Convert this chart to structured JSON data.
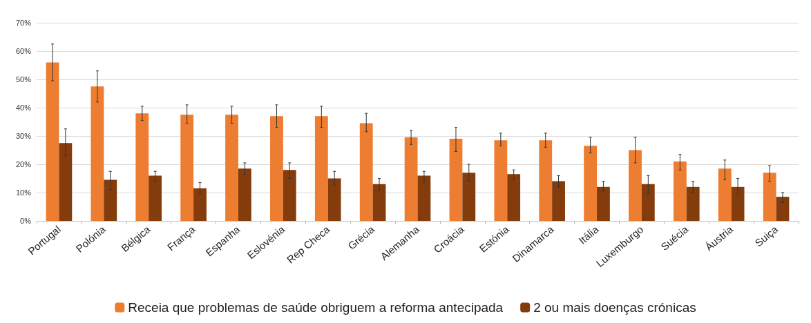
{
  "chart_data": {
    "type": "bar",
    "categories": [
      "Portugal",
      "Polónia",
      "Bélgica",
      "França",
      "Espanha",
      "Eslovénia",
      "Rep Checa",
      "Grécia",
      "Alemanha",
      "Croácia",
      "Estónia",
      "Dinamarca",
      "Itália",
      "Luxemburgo",
      "Suécia",
      "Áustria",
      "Suiça"
    ],
    "series": [
      {
        "name": "Receia que problemas de saúde obriguem a reforma antecipada",
        "color": "#ed7d31",
        "values": [
          56,
          47.5,
          38,
          37.5,
          37.5,
          37,
          37,
          34.5,
          29.5,
          29,
          28.5,
          28.5,
          26.5,
          25,
          21,
          18.5,
          17
        ],
        "errors": [
          [
            49.5,
            62.5
          ],
          [
            42,
            53
          ],
          [
            35.5,
            40.5
          ],
          [
            34.5,
            41
          ],
          [
            34.5,
            40.5
          ],
          [
            33,
            41
          ],
          [
            33,
            40.5
          ],
          [
            31.5,
            38
          ],
          [
            27,
            32
          ],
          [
            24.5,
            33
          ],
          [
            26.5,
            31
          ],
          [
            26,
            31
          ],
          [
            24,
            29.5
          ],
          [
            20.5,
            29.5
          ],
          [
            18,
            23.5
          ],
          [
            14.5,
            21.5
          ],
          [
            14,
            19.5
          ]
        ]
      },
      {
        "name": "2 ou mais doenças crónicas",
        "color": "#843c0c",
        "values": [
          27.5,
          14.5,
          16,
          11.5,
          18.5,
          18,
          15,
          13,
          16,
          17,
          16.5,
          14,
          12,
          13,
          12,
          12,
          8.5
        ],
        "errors": [
          [
            23,
            32.5
          ],
          [
            11,
            17.5
          ],
          [
            14,
            17.5
          ],
          [
            9.5,
            13.5
          ],
          [
            16.5,
            20.5
          ],
          [
            15,
            20.5
          ],
          [
            12.5,
            17.5
          ],
          [
            11,
            15
          ],
          [
            14,
            17.5
          ],
          [
            14,
            20
          ],
          [
            14.5,
            18
          ],
          [
            12,
            16
          ],
          [
            10.5,
            14
          ],
          [
            9.5,
            16
          ],
          [
            10,
            14
          ],
          [
            9.5,
            15
          ],
          [
            6.5,
            10
          ]
        ]
      }
    ],
    "ylim": [
      0,
      70
    ],
    "yticks": [
      {
        "value": 0,
        "label": "0%"
      },
      {
        "value": 10,
        "label": "10%"
      },
      {
        "value": 20,
        "label": "20%"
      },
      {
        "value": 30,
        "label": "30%"
      },
      {
        "value": 40,
        "label": "40%"
      },
      {
        "value": 50,
        "label": "50%"
      },
      {
        "value": 60,
        "label": "60%"
      },
      {
        "value": 70,
        "label": "70%"
      }
    ],
    "grid": "y",
    "legend": "bottom"
  }
}
